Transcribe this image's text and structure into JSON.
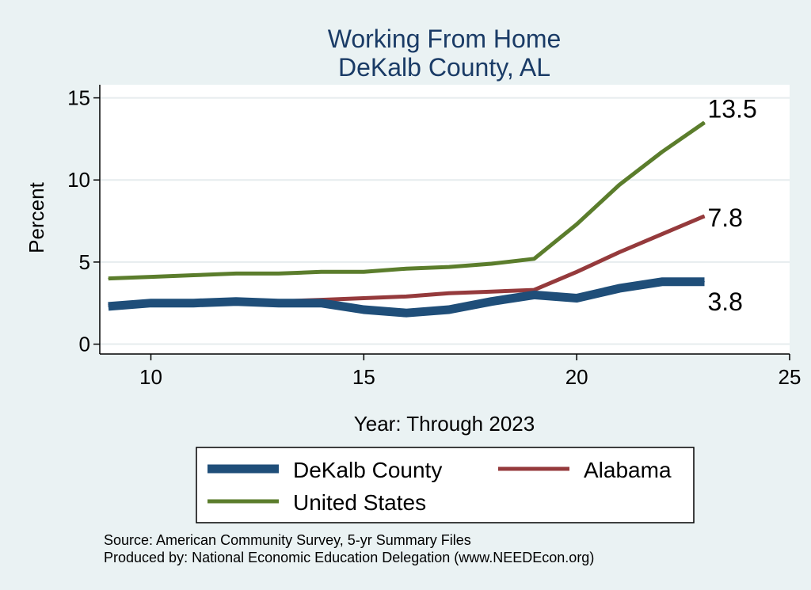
{
  "chart_data": {
    "type": "line",
    "title_lines": [
      "Working From Home",
      "DeKalb County, AL"
    ],
    "xlabel": "Year: Through 2023",
    "ylabel": "Percent",
    "xlim": [
      8.8,
      25
    ],
    "ylim": [
      -0.6,
      15.8
    ],
    "xticks": [
      10,
      15,
      20,
      25
    ],
    "yticks": [
      0,
      5,
      10,
      15
    ],
    "grid": true,
    "legend_position": "bottom",
    "series": [
      {
        "name": "DeKalb County",
        "color": "#1f4e79",
        "x": [
          9,
          10,
          11,
          12,
          13,
          14,
          15,
          16,
          17,
          18,
          19,
          20,
          21,
          22,
          23
        ],
        "y": [
          2.3,
          2.5,
          2.5,
          2.6,
          2.5,
          2.5,
          2.1,
          1.9,
          2.1,
          2.6,
          3.0,
          2.8,
          3.4,
          3.8,
          3.8
        ],
        "end_label": "3.8"
      },
      {
        "name": "Alabama",
        "color": "#953a3c",
        "x": [
          9,
          10,
          11,
          12,
          13,
          14,
          15,
          16,
          17,
          18,
          19,
          20,
          21,
          22,
          23
        ],
        "y": [
          2.4,
          2.5,
          2.6,
          2.6,
          2.6,
          2.7,
          2.8,
          2.9,
          3.1,
          3.2,
          3.3,
          4.4,
          5.6,
          6.7,
          7.8
        ],
        "end_label": "7.8"
      },
      {
        "name": "United States",
        "color": "#5b7d2c",
        "x": [
          9,
          10,
          11,
          12,
          13,
          14,
          15,
          16,
          17,
          18,
          19,
          20,
          21,
          22,
          23
        ],
        "y": [
          4.0,
          4.1,
          4.2,
          4.3,
          4.3,
          4.4,
          4.4,
          4.6,
          4.7,
          4.9,
          5.2,
          7.3,
          9.7,
          11.7,
          13.5
        ],
        "end_label": "13.5"
      }
    ]
  },
  "footer": {
    "source": "Source: American Community Survey, 5-yr Summary Files",
    "produced_by": "Produced by: National Economic Education Delegation (www.NEEDEcon.org)"
  }
}
